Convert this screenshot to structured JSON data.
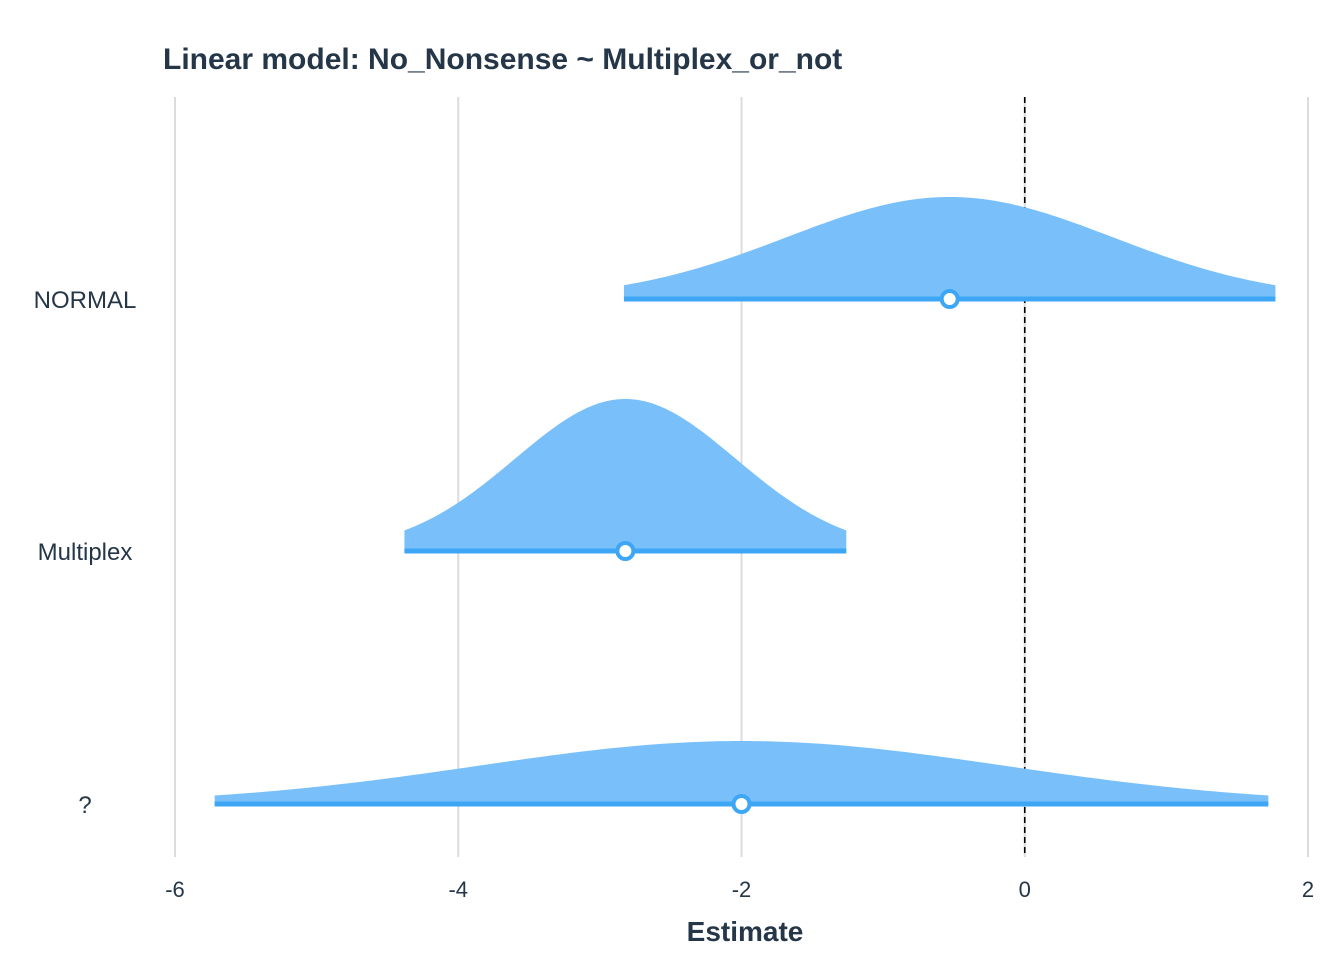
{
  "chart_data": {
    "type": "area",
    "title": "Linear model: No_Nonsense ~ Multiplex_or_not",
    "xlabel": "Estimate",
    "ylabel": "",
    "xlim": [
      -6.1,
      2.0
    ],
    "xticks": [
      -6,
      -4,
      -2,
      0,
      2
    ],
    "reference_line": 0,
    "grid": "vertical",
    "categories": [
      "NORMAL",
      "Multiplex",
      "?"
    ],
    "series": [
      {
        "category": "NORMAL",
        "estimate": -0.53,
        "interval": [
          -2.83,
          1.77
        ],
        "sd": 1.15
      },
      {
        "category": "Multiplex",
        "estimate": -2.82,
        "interval": [
          -4.38,
          -1.26
        ],
        "sd": 0.78
      },
      {
        "category": "?",
        "estimate": -2.0,
        "interval": [
          -5.72,
          1.72
        ],
        "sd": 1.86
      }
    ],
    "colors": {
      "fill": "#79c0fb",
      "line": "#3da6f5",
      "point_fill": "#ffffff",
      "grid": "#dcdcdc",
      "reference": "#000000",
      "text": "#243648"
    }
  }
}
